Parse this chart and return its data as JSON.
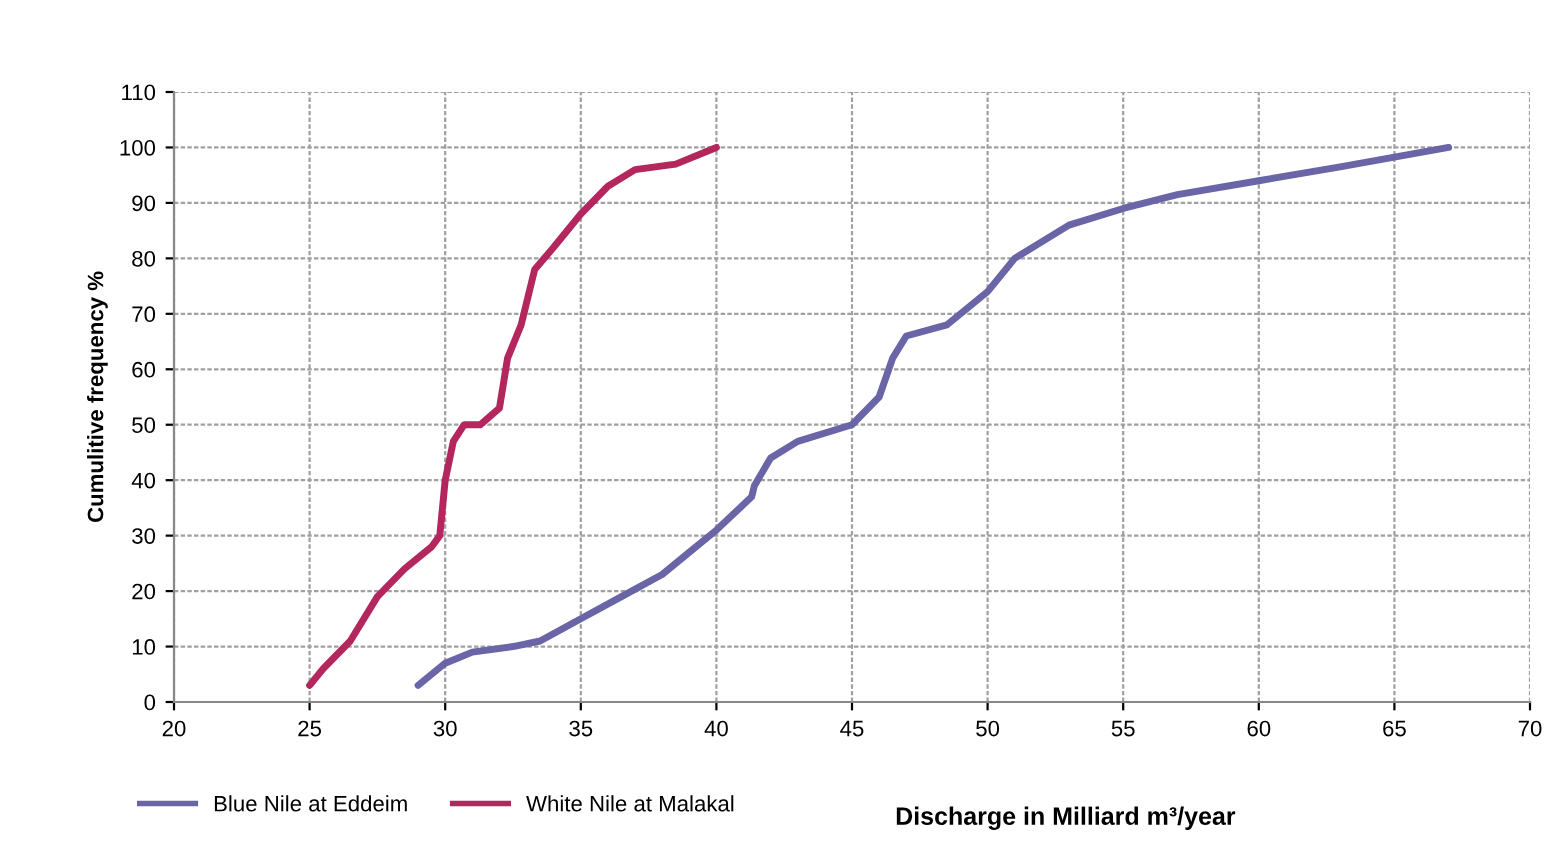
{
  "chart_data": {
    "type": "line",
    "xlabel": "Discharge in Milliard m³/year",
    "ylabel": "Cumulitive frequency %",
    "xlim": [
      20,
      70
    ],
    "xticks": [
      20,
      25,
      30,
      35,
      40,
      45,
      50,
      55,
      60,
      65,
      70
    ],
    "ylim": [
      0,
      110
    ],
    "yticks": [
      0,
      10,
      20,
      30,
      40,
      50,
      60,
      70,
      80,
      90,
      100,
      110
    ],
    "grid": true,
    "legend": "bottom",
    "marker": "none",
    "line_style": "solid",
    "series": [
      {
        "name": "Blue Nile at Eddeim",
        "color": "#6a65a6",
        "x": [
          29,
          30,
          31,
          32.5,
          33.5,
          35,
          36.5,
          38,
          39,
          40,
          41.3,
          41.4,
          42,
          43,
          45,
          46,
          46.5,
          47,
          48.5,
          50,
          51,
          53,
          55,
          57,
          60,
          63,
          67
        ],
        "values": [
          3,
          7,
          9,
          10,
          11,
          15,
          19,
          23,
          27,
          31,
          37,
          39,
          44,
          47,
          50,
          55,
          62,
          66,
          68,
          74,
          80,
          86,
          89,
          91.5,
          94,
          96.5,
          100
        ]
      },
      {
        "name": "White Nile at Malakal",
        "color": "#b3265e",
        "x": [
          25,
          25.5,
          26.5,
          27.5,
          28.5,
          29.5,
          29.8,
          30,
          30.3,
          30.7,
          31.3,
          32,
          32.3,
          32.8,
          33.3,
          34,
          35,
          36,
          37,
          38.5,
          40
        ],
        "values": [
          3,
          6,
          11,
          19,
          24,
          28,
          30,
          40,
          47,
          50,
          50,
          53,
          62,
          68,
          78,
          82,
          88,
          93,
          96,
          97,
          100
        ]
      }
    ]
  }
}
